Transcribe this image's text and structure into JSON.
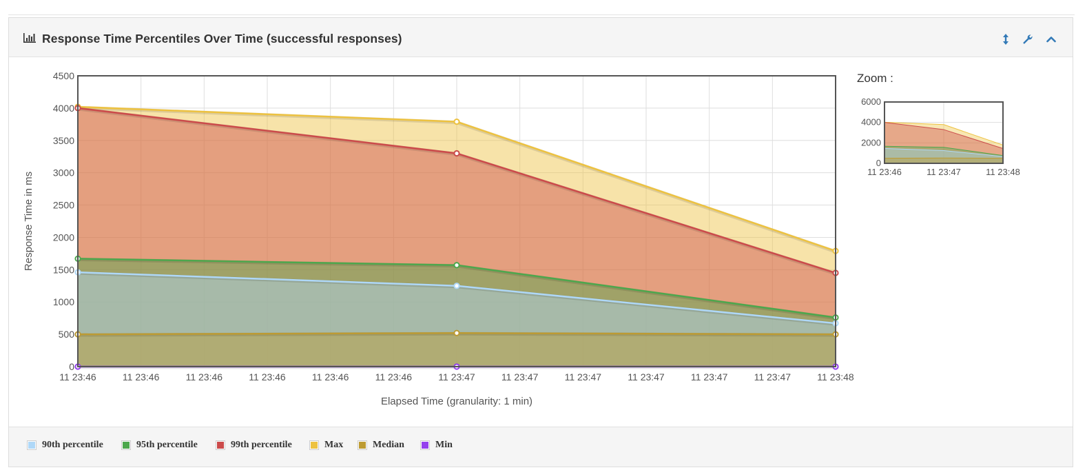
{
  "panel": {
    "title": "Response Time Percentiles Over Time (successful responses)",
    "title_icon": "bar-chart-icon",
    "tools": [
      "resize-vertical-icon",
      "wrench-icon",
      "chevron-up-icon"
    ]
  },
  "zoom_label": "Zoom :",
  "chart_data": {
    "type": "area",
    "title": "",
    "xlabel": "Elapsed Time (granularity: 1 min)",
    "ylabel": "Response Time in ms",
    "ylim": [
      0,
      4500
    ],
    "yticks": [
      0,
      500,
      1000,
      1500,
      2000,
      2500,
      3000,
      3500,
      4000,
      4500
    ],
    "x": [
      "11 23:46",
      "11 23:47",
      "11 23:48"
    ],
    "xtick_labels": [
      "11 23:46",
      "11 23:46",
      "11 23:46",
      "11 23:46",
      "11 23:46",
      "11 23:46",
      "11 23:47",
      "11 23:47",
      "11 23:47",
      "11 23:47",
      "11 23:47",
      "11 23:47",
      "11 23:48"
    ],
    "grid": true,
    "legend_position": "bottom",
    "series": [
      {
        "name": "Max",
        "color": "#edc240",
        "values": [
          4020,
          3790,
          1790
        ]
      },
      {
        "name": "99th percentile",
        "color": "#cb4b4b",
        "values": [
          4000,
          3300,
          1450
        ]
      },
      {
        "name": "95th percentile",
        "color": "#4da74d",
        "values": [
          1670,
          1570,
          760
        ]
      },
      {
        "name": "90th percentile",
        "color": "#afd8f8",
        "values": [
          1460,
          1250,
          670
        ]
      },
      {
        "name": "Median",
        "color": "#bd9b33",
        "values": [
          500,
          520,
          500
        ]
      },
      {
        "name": "Min",
        "color": "#9440ed",
        "values": [
          0,
          0,
          0
        ]
      }
    ],
    "legend_order": [
      "90th percentile",
      "95th percentile",
      "99th percentile",
      "Max",
      "Median",
      "Min"
    ]
  },
  "zoom_chart": {
    "ylim": [
      0,
      6000
    ],
    "yticks": [
      0,
      2000,
      4000,
      6000
    ],
    "xtick_labels": [
      "11 23:46",
      "11 23:47",
      "11 23:48"
    ]
  }
}
